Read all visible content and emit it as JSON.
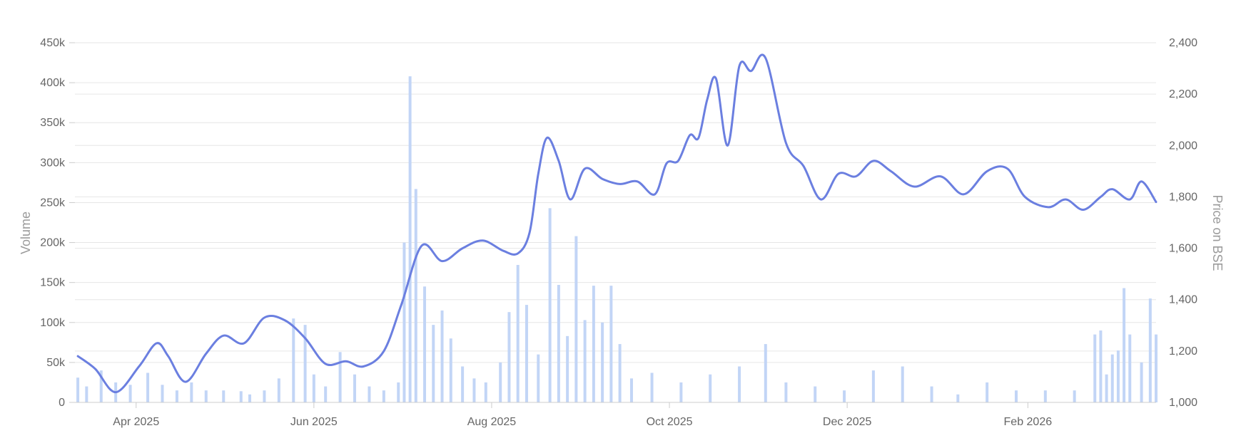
{
  "chart_data": {
    "type": "bar+line",
    "title": "",
    "grid": true,
    "legend": "none",
    "x_axis": {
      "type": "date",
      "ticks": [
        "Apr 2025",
        "Jun 2025",
        "Aug 2025",
        "Oct 2025",
        "Dec 2025",
        "Feb 2026"
      ],
      "tick_dates": [
        "2025-04-01",
        "2025-06-01",
        "2025-08-01",
        "2025-10-01",
        "2025-12-01",
        "2026-02-01"
      ],
      "range": [
        "2025-03-11",
        "2026-03-17"
      ]
    },
    "y_left": {
      "label": "Volume",
      "range": [
        0,
        450000
      ],
      "ticks": [
        "0",
        "50k",
        "100k",
        "150k",
        "200k",
        "250k",
        "300k",
        "350k",
        "400k",
        "450k"
      ],
      "tick_values": [
        0,
        50000,
        100000,
        150000,
        200000,
        250000,
        300000,
        350000,
        400000,
        450000
      ]
    },
    "y_right": {
      "label": "Price on BSE",
      "range": [
        1000,
        2400
      ],
      "ticks": [
        "1,000",
        "1,200",
        "1,400",
        "1,600",
        "1,800",
        "2,000",
        "2,200",
        "2,400"
      ],
      "tick_values": [
        1000,
        1200,
        1400,
        1600,
        1800,
        2000,
        2200,
        2400
      ]
    },
    "series": [
      {
        "name": "",
        "type": "bar",
        "axis": "left",
        "color": "#c2d5f6",
        "points": [
          [
            "2025-03-12",
            31000
          ],
          [
            "2025-03-15",
            20000
          ],
          [
            "2025-03-20",
            40000
          ],
          [
            "2025-03-25",
            25000
          ],
          [
            "2025-03-30",
            22000
          ],
          [
            "2025-04-05",
            37000
          ],
          [
            "2025-04-10",
            22000
          ],
          [
            "2025-04-15",
            15000
          ],
          [
            "2025-04-20",
            25000
          ],
          [
            "2025-04-25",
            15000
          ],
          [
            "2025-05-01",
            15000
          ],
          [
            "2025-05-07",
            14000
          ],
          [
            "2025-05-10",
            10000
          ],
          [
            "2025-05-15",
            15000
          ],
          [
            "2025-05-20",
            30000
          ],
          [
            "2025-05-25",
            105000
          ],
          [
            "2025-05-29",
            97000
          ],
          [
            "2025-06-01",
            35000
          ],
          [
            "2025-06-05",
            20000
          ],
          [
            "2025-06-10",
            63000
          ],
          [
            "2025-06-15",
            35000
          ],
          [
            "2025-06-20",
            20000
          ],
          [
            "2025-06-25",
            15000
          ],
          [
            "2025-06-30",
            25000
          ],
          [
            "2025-07-02",
            200000
          ],
          [
            "2025-07-04",
            408000
          ],
          [
            "2025-07-06",
            267000
          ],
          [
            "2025-07-09",
            145000
          ],
          [
            "2025-07-12",
            97000
          ],
          [
            "2025-07-15",
            115000
          ],
          [
            "2025-07-18",
            80000
          ],
          [
            "2025-07-22",
            45000
          ],
          [
            "2025-07-26",
            30000
          ],
          [
            "2025-07-30",
            25000
          ],
          [
            "2025-08-04",
            50000
          ],
          [
            "2025-08-07",
            113000
          ],
          [
            "2025-08-10",
            172000
          ],
          [
            "2025-08-13",
            122000
          ],
          [
            "2025-08-17",
            60000
          ],
          [
            "2025-08-21",
            243000
          ],
          [
            "2025-08-24",
            147000
          ],
          [
            "2025-08-27",
            83000
          ],
          [
            "2025-08-30",
            208000
          ],
          [
            "2025-09-02",
            103000
          ],
          [
            "2025-09-05",
            146000
          ],
          [
            "2025-09-08",
            100000
          ],
          [
            "2025-09-11",
            146000
          ],
          [
            "2025-09-14",
            73000
          ],
          [
            "2025-09-18",
            30000
          ],
          [
            "2025-09-25",
            37000
          ],
          [
            "2025-10-05",
            25000
          ],
          [
            "2025-10-15",
            35000
          ],
          [
            "2025-10-25",
            45000
          ],
          [
            "2025-11-03",
            73000
          ],
          [
            "2025-11-10",
            25000
          ],
          [
            "2025-11-20",
            20000
          ],
          [
            "2025-11-30",
            15000
          ],
          [
            "2025-12-10",
            40000
          ],
          [
            "2025-12-20",
            45000
          ],
          [
            "2025-12-30",
            20000
          ],
          [
            "2026-01-08",
            10000
          ],
          [
            "2026-01-18",
            25000
          ],
          [
            "2026-01-28",
            15000
          ],
          [
            "2026-02-07",
            15000
          ],
          [
            "2026-02-17",
            15000
          ],
          [
            "2026-02-24",
            85000
          ],
          [
            "2026-02-26",
            90000
          ],
          [
            "2026-02-28",
            35000
          ],
          [
            "2026-03-02",
            60000
          ],
          [
            "2026-03-04",
            65000
          ],
          [
            "2026-03-06",
            143000
          ],
          [
            "2026-03-08",
            85000
          ],
          [
            "2026-03-12",
            50000
          ],
          [
            "2026-03-15",
            130000
          ],
          [
            "2026-03-17",
            85000
          ]
        ]
      },
      {
        "name": "",
        "type": "line",
        "axis": "right",
        "color": "#6b7fe0",
        "points": [
          [
            "2025-03-12",
            1180
          ],
          [
            "2025-03-18",
            1130
          ],
          [
            "2025-03-25",
            1040
          ],
          [
            "2025-04-02",
            1140
          ],
          [
            "2025-04-08",
            1230
          ],
          [
            "2025-04-12",
            1180
          ],
          [
            "2025-04-18",
            1080
          ],
          [
            "2025-04-25",
            1190
          ],
          [
            "2025-05-01",
            1260
          ],
          [
            "2025-05-08",
            1230
          ],
          [
            "2025-05-15",
            1330
          ],
          [
            "2025-05-22",
            1320
          ],
          [
            "2025-05-29",
            1250
          ],
          [
            "2025-06-05",
            1150
          ],
          [
            "2025-06-12",
            1160
          ],
          [
            "2025-06-18",
            1140
          ],
          [
            "2025-06-25",
            1200
          ],
          [
            "2025-07-01",
            1380
          ],
          [
            "2025-07-08",
            1610
          ],
          [
            "2025-07-15",
            1550
          ],
          [
            "2025-07-22",
            1600
          ],
          [
            "2025-07-29",
            1630
          ],
          [
            "2025-08-05",
            1590
          ],
          [
            "2025-08-10",
            1580
          ],
          [
            "2025-08-14",
            1660
          ],
          [
            "2025-08-17",
            1890
          ],
          [
            "2025-08-20",
            2030
          ],
          [
            "2025-08-24",
            1940
          ],
          [
            "2025-08-28",
            1790
          ],
          [
            "2025-09-02",
            1910
          ],
          [
            "2025-09-08",
            1870
          ],
          [
            "2025-09-14",
            1850
          ],
          [
            "2025-09-20",
            1860
          ],
          [
            "2025-09-26",
            1810
          ],
          [
            "2025-09-30",
            1930
          ],
          [
            "2025-10-04",
            1940
          ],
          [
            "2025-10-08",
            2040
          ],
          [
            "2025-10-11",
            2030
          ],
          [
            "2025-10-14",
            2180
          ],
          [
            "2025-10-17",
            2260
          ],
          [
            "2025-10-21",
            2000
          ],
          [
            "2025-10-25",
            2310
          ],
          [
            "2025-10-29",
            2290
          ],
          [
            "2025-11-03",
            2340
          ],
          [
            "2025-11-10",
            2010
          ],
          [
            "2025-11-16",
            1920
          ],
          [
            "2025-11-22",
            1790
          ],
          [
            "2025-11-28",
            1890
          ],
          [
            "2025-12-04",
            1880
          ],
          [
            "2025-12-10",
            1940
          ],
          [
            "2025-12-16",
            1900
          ],
          [
            "2025-12-24",
            1840
          ],
          [
            "2026-01-02",
            1880
          ],
          [
            "2026-01-10",
            1810
          ],
          [
            "2026-01-18",
            1900
          ],
          [
            "2026-01-25",
            1910
          ],
          [
            "2026-01-31",
            1800
          ],
          [
            "2026-02-08",
            1760
          ],
          [
            "2026-02-14",
            1790
          ],
          [
            "2026-02-20",
            1750
          ],
          [
            "2026-02-26",
            1800
          ],
          [
            "2026-03-02",
            1830
          ],
          [
            "2026-03-08",
            1790
          ],
          [
            "2026-03-12",
            1860
          ],
          [
            "2026-03-17",
            1780
          ]
        ]
      }
    ]
  }
}
